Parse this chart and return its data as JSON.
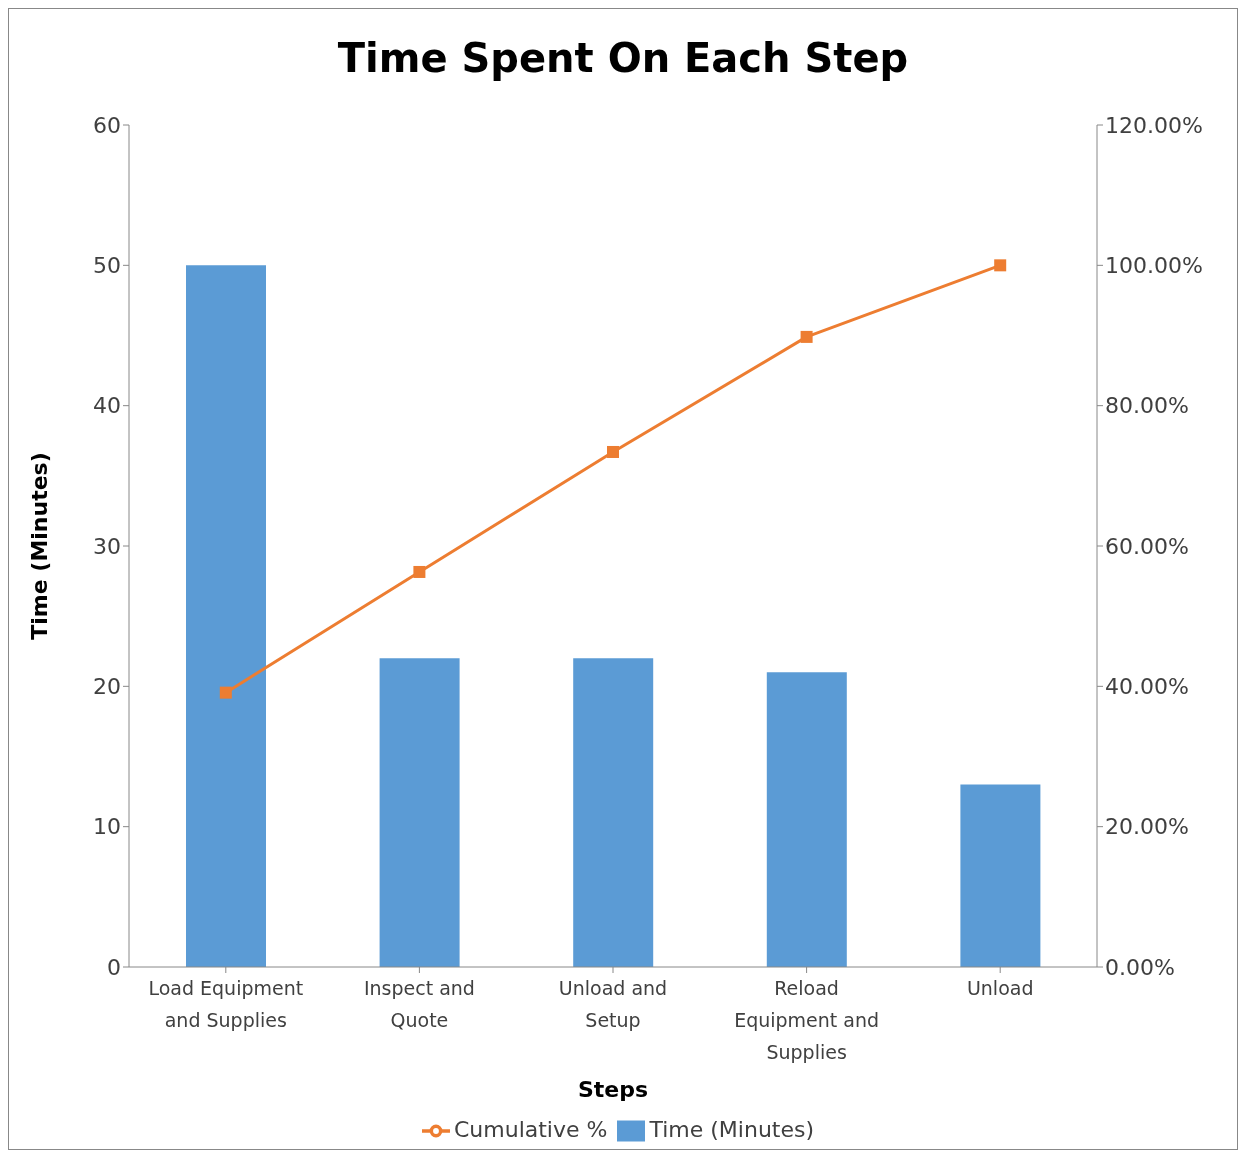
{
  "chart_data": {
    "type": "bar",
    "title": "Time Spent On Each Step",
    "xlabel": "Steps",
    "ylabel": "Time (Minutes)",
    "categories": [
      "Load Equipment and Supplies",
      "Inspect and Quote",
      "Unload and Setup",
      "Reload Equipment and Supplies",
      "Unload"
    ],
    "series": [
      {
        "name": "Time (Minutes)",
        "color": "#5b9bd5",
        "values": [
          50,
          22,
          22,
          21,
          13
        ]
      },
      {
        "name": "Cumulative %",
        "type": "line",
        "axis": "y2",
        "color": "#ed7d31",
        "values": [
          39.1,
          56.3,
          73.4,
          89.8,
          100
        ]
      }
    ],
    "ylim": [
      0,
      60
    ],
    "yticks": [
      0,
      10,
      20,
      30,
      40,
      50,
      60
    ],
    "y2lim": [
      0,
      120
    ],
    "y2ticks": [
      {
        "value": 0,
        "label": "0.00%"
      },
      {
        "value": 20,
        "label": "20.00%"
      },
      {
        "value": 40,
        "label": "40.00%"
      },
      {
        "value": 60,
        "label": "60.00%"
      },
      {
        "value": 80,
        "label": "80.00%"
      },
      {
        "value": 100,
        "label": "100.00%"
      },
      {
        "value": 120,
        "label": "120.00%"
      }
    ],
    "grid": false,
    "legend": "bottom",
    "marker": "square",
    "line_style": "solid"
  }
}
